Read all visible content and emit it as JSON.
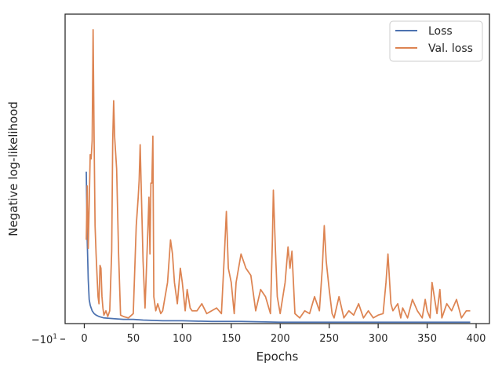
{
  "chart_data": {
    "type": "line",
    "title": "",
    "xlabel": "Epochs",
    "ylabel": "Negative log-likelihood",
    "xlim": [
      -19.6,
      413.6
    ],
    "ylim": [
      -9.89,
      -7.71
    ],
    "yscale": "symlog",
    "grid": false,
    "legend_position": "upper right",
    "x_ticks": [
      {
        "value": 0,
        "label": "0"
      },
      {
        "value": 50,
        "label": "50"
      },
      {
        "value": 100,
        "label": "100"
      },
      {
        "value": 150,
        "label": "150"
      },
      {
        "value": 200,
        "label": "200"
      },
      {
        "value": 250,
        "label": "250"
      },
      {
        "value": 300,
        "label": "300"
      },
      {
        "value": 350,
        "label": "350"
      },
      {
        "value": 400,
        "label": "400"
      }
    ],
    "y_ticks": [
      {
        "value": -10,
        "label": "−10",
        "exponent": "1"
      }
    ],
    "series": [
      {
        "name": "Loss",
        "color": "#4c72b0",
        "x": [
          2,
          3,
          4,
          5,
          6,
          7,
          8,
          10,
          12,
          15,
          20,
          30,
          40,
          50,
          60,
          80,
          100,
          130,
          160,
          200,
          250,
          300,
          350,
          394
        ],
        "y": [
          -8.82,
          -9.3,
          -9.58,
          -9.72,
          -9.76,
          -9.78,
          -9.8,
          -9.82,
          -9.83,
          -9.84,
          -9.85,
          -9.855,
          -9.86,
          -9.86,
          -9.865,
          -9.87,
          -9.87,
          -9.875,
          -9.875,
          -9.88,
          -9.88,
          -9.88,
          -9.88,
          -9.88
        ]
      },
      {
        "name": "Val. loss",
        "color": "#dd8452",
        "x": [
          2,
          3,
          4,
          5,
          6,
          7,
          8,
          9,
          10,
          11,
          12,
          13,
          14,
          15,
          16,
          17,
          18,
          19,
          20,
          22,
          24,
          26,
          28,
          29,
          30,
          31,
          33,
          35,
          37,
          40,
          45,
          50,
          53,
          55,
          56,
          57,
          58,
          60,
          62,
          64,
          65,
          66,
          67,
          68,
          69,
          70,
          71,
          73,
          75,
          78,
          80,
          85,
          88,
          90,
          92,
          95,
          98,
          100,
          103,
          105,
          108,
          110,
          115,
          120,
          125,
          130,
          135,
          140,
          143,
          145,
          147,
          150,
          153,
          155,
          160,
          165,
          170,
          175,
          180,
          185,
          190,
          192,
          193,
          195,
          197,
          200,
          205,
          208,
          210,
          212,
          215,
          220,
          225,
          230,
          235,
          240,
          243,
          245,
          247,
          250,
          253,
          255,
          260,
          265,
          270,
          275,
          280,
          285,
          290,
          295,
          300,
          305,
          308,
          310,
          313,
          315,
          320,
          323,
          325,
          330,
          335,
          340,
          345,
          348,
          350,
          353,
          355,
          360,
          363,
          365,
          370,
          375,
          380,
          385,
          390,
          394
        ],
        "y": [
          -9.3,
          -8.92,
          -9.36,
          -9.06,
          -8.7,
          -8.73,
          -8.6,
          -7.82,
          -8.6,
          -9.2,
          -9.4,
          -9.55,
          -9.7,
          -9.75,
          -9.48,
          -9.5,
          -9.7,
          -9.78,
          -9.83,
          -9.8,
          -9.84,
          -9.8,
          -9.38,
          -8.6,
          -8.32,
          -8.58,
          -8.8,
          -9.4,
          -9.83,
          -9.84,
          -9.85,
          -9.82,
          -9.2,
          -9.0,
          -8.88,
          -8.63,
          -8.9,
          -9.45,
          -9.78,
          -9.4,
          -9.2,
          -9.0,
          -9.4,
          -8.9,
          -8.9,
          -8.57,
          -9.7,
          -9.8,
          -9.75,
          -9.82,
          -9.8,
          -9.6,
          -9.3,
          -9.4,
          -9.6,
          -9.75,
          -9.5,
          -9.6,
          -9.8,
          -9.65,
          -9.78,
          -9.8,
          -9.8,
          -9.75,
          -9.82,
          -9.8,
          -9.78,
          -9.82,
          -9.4,
          -9.1,
          -9.5,
          -9.6,
          -9.82,
          -9.6,
          -9.4,
          -9.5,
          -9.55,
          -9.8,
          -9.65,
          -9.7,
          -9.82,
          -9.3,
          -8.95,
          -9.35,
          -9.7,
          -9.82,
          -9.6,
          -9.35,
          -9.5,
          -9.38,
          -9.82,
          -9.85,
          -9.8,
          -9.82,
          -9.7,
          -9.8,
          -9.5,
          -9.2,
          -9.45,
          -9.65,
          -9.82,
          -9.85,
          -9.7,
          -9.85,
          -9.8,
          -9.83,
          -9.75,
          -9.85,
          -9.8,
          -9.85,
          -9.83,
          -9.82,
          -9.6,
          -9.4,
          -9.75,
          -9.8,
          -9.75,
          -9.85,
          -9.78,
          -9.85,
          -9.72,
          -9.8,
          -9.85,
          -9.72,
          -9.8,
          -9.85,
          -9.6,
          -9.82,
          -9.65,
          -9.85,
          -9.75,
          -9.8,
          -9.72,
          -9.85,
          -9.8,
          -9.8
        ]
      }
    ]
  }
}
